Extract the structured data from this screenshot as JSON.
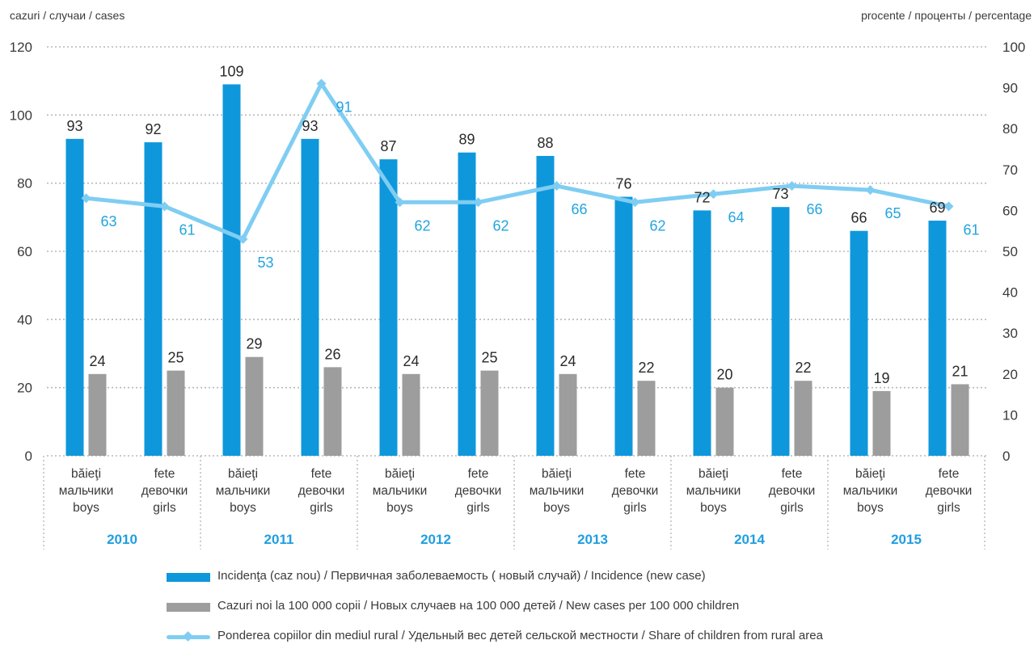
{
  "chart_data": {
    "type": "bar",
    "left_axis_label": "cazuri / случаи / cases",
    "right_axis_label": "procente / проценты / percentage",
    "left_ylim": [
      0,
      120
    ],
    "left_ticks": [
      "0",
      "20",
      "40",
      "60",
      "80",
      "100",
      "120"
    ],
    "right_ylim": [
      0,
      100
    ],
    "right_ticks": [
      "0",
      "10",
      "20",
      "30",
      "40",
      "50",
      "60",
      "70",
      "80",
      "90",
      "100"
    ],
    "grid": true,
    "groups": [
      "2010",
      "2011",
      "2012",
      "2013",
      "2014",
      "2015"
    ],
    "categories": [
      {
        "label": [
          "băieţi",
          "мальчики",
          "boys"
        ],
        "group": "2010"
      },
      {
        "label": [
          "fete",
          "девочки",
          "girls"
        ],
        "group": "2010"
      },
      {
        "label": [
          "băieţi",
          "мальчики",
          "boys"
        ],
        "group": "2011"
      },
      {
        "label": [
          "fete",
          "девочки",
          "girls"
        ],
        "group": "2011"
      },
      {
        "label": [
          "băieţi",
          "мальчики",
          "boys"
        ],
        "group": "2012"
      },
      {
        "label": [
          "fete",
          "девочки",
          "girls"
        ],
        "group": "2012"
      },
      {
        "label": [
          "băieţi",
          "мальчики",
          "boys"
        ],
        "group": "2013"
      },
      {
        "label": [
          "fete",
          "девочки",
          "girls"
        ],
        "group": "2013"
      },
      {
        "label": [
          "băieţi",
          "мальчики",
          "boys"
        ],
        "group": "2014"
      },
      {
        "label": [
          "fete",
          "девочки",
          "girls"
        ],
        "group": "2014"
      },
      {
        "label": [
          "băieţi",
          "мальчики",
          "boys"
        ],
        "group": "2015"
      },
      {
        "label": [
          "fete",
          "девочки",
          "girls"
        ],
        "group": "2015"
      }
    ],
    "series": [
      {
        "name": "Incidenţa (caz nou) / Первичная заболеваемость ( новый случай) / Incidence (new case)",
        "type": "bar",
        "axis": "left",
        "color": "#0f97dc",
        "values": [
          93,
          92,
          109,
          93,
          87,
          89,
          88,
          76,
          72,
          73,
          66,
          69
        ]
      },
      {
        "name": "Cazuri noi la 100 000 copii / Новых случаев на 100 000 детей / New cases per 100 000 children",
        "type": "bar",
        "axis": "left",
        "color": "#9d9d9d",
        "values": [
          24,
          25,
          29,
          26,
          24,
          25,
          24,
          22,
          20,
          22,
          19,
          21
        ]
      },
      {
        "name": "Ponderea copiilor din mediul rural / Удельный вес детей  сельской местности / Share of children from rural area",
        "type": "line",
        "axis": "right",
        "color": "#7fcdf2",
        "label_color": "#23a4e0",
        "values": [
          63,
          61,
          53,
          91,
          62,
          62,
          66,
          62,
          64,
          66,
          65,
          61
        ]
      }
    ]
  }
}
